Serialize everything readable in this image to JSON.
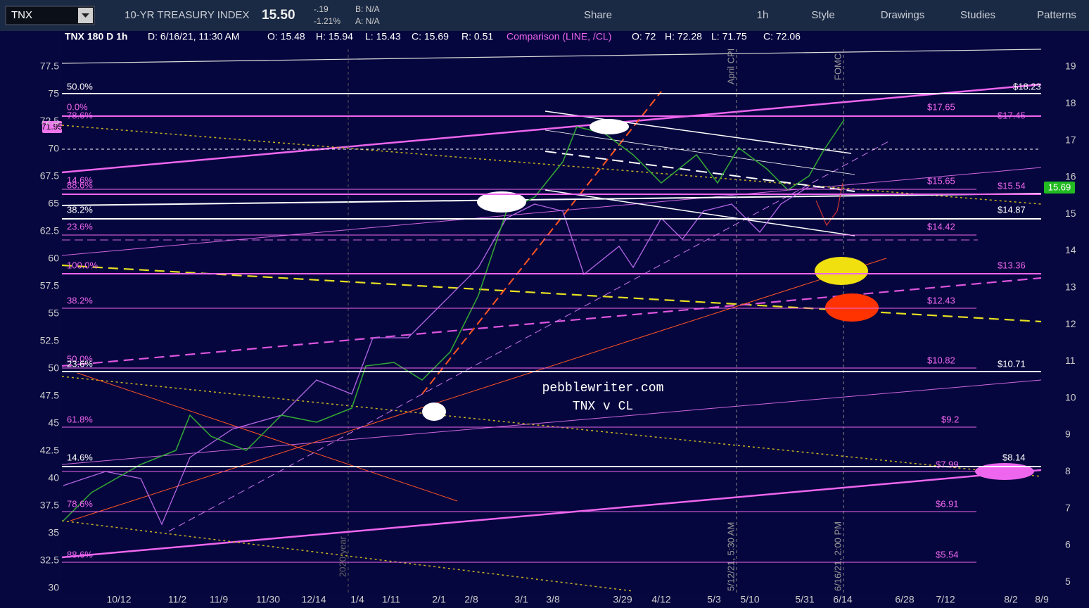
{
  "toolbar": {
    "symbol": "TNX",
    "description": "10-YR TREASURY INDEX",
    "last": "15.50",
    "change": "-.19",
    "change_pct": "-1.21%",
    "bid": "B: N/A",
    "ask": "A: N/A",
    "buttons": [
      "Share",
      "1h",
      "Style",
      "Drawings",
      "Studies",
      "Patterns"
    ]
  },
  "header": {
    "study": "TNX 180 D 1h",
    "date": "D: 6/16/21, 11:30 AM",
    "ohlc": [
      "O: 15.48",
      "H: 15.94",
      "L: 15.43",
      "C: 15.69",
      "R: 0.51"
    ],
    "comparison": "Comparison (LINE, /CL)",
    "comparison_ohlc": [
      "O: 72",
      "H: 72.28",
      "L: 71.75",
      "C: 72.06"
    ]
  },
  "left_axis": [
    "77.5",
    "75",
    "72.5",
    "70",
    "67.5",
    "65",
    "62.5",
    "60",
    "57.5",
    "55",
    "52.5",
    "50",
    "47.5",
    "45",
    "42.5",
    "40",
    "37.5",
    "35",
    "32.5",
    "30"
  ],
  "right_axis": [
    "19",
    "18",
    "17",
    "16",
    "15",
    "14",
    "13",
    "12",
    "11",
    "10",
    "9",
    "8",
    "7",
    "6",
    "5"
  ],
  "x_axis": [
    "10/12",
    "11/2",
    "11/9",
    "11/30",
    "12/14",
    "1/4",
    "1/11",
    "2/1",
    "2/8",
    "3/1",
    "3/8",
    "3/29",
    "4/12",
    "5/3",
    "5/10",
    "5/31",
    "6/14",
    "6/28",
    "7/12",
    "8/2",
    "8/9"
  ],
  "price_tags": {
    "comparison": "71.95",
    "last": "15.69"
  },
  "fib_labels": [
    "50.0%",
    "0.0%",
    "78.6%",
    "14.6%",
    "88.6%",
    "38.2%",
    "23.6%",
    "100.0%",
    "38.2%",
    "50.0%",
    "23.6%",
    "61.8%",
    "14.6%",
    "78.6%",
    "88.6%"
  ],
  "price_labels": [
    "$18.23",
    "$17.65",
    "$17.45",
    "$15.65",
    "$15.54",
    "$14.87",
    "$14.42",
    "$13.36",
    "$12.43",
    "$10.82",
    "$10.71",
    "$9.2",
    "$8.14",
    "$7.99",
    "$6.91",
    "$5.54"
  ],
  "annotations": {
    "site": "pebblewriter.com",
    "subtitle": "TNX v CL",
    "cpi": "April CPI",
    "fomc": "FOMC",
    "cpi_time": "5/12/21, 5:30 AM",
    "fomc_time": "6/16/21, 2:00 PM",
    "year": "2020 year"
  }
}
